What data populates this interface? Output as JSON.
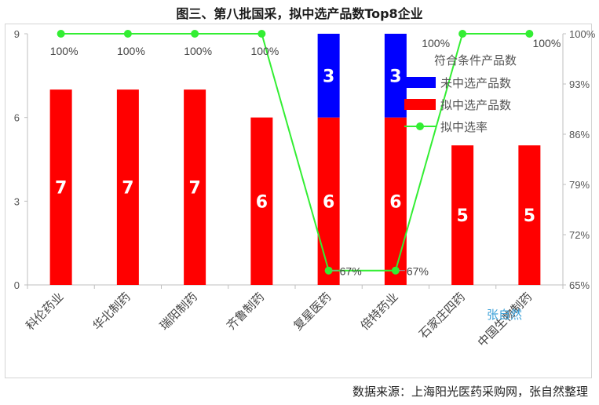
{
  "chart_data": {
    "type": "bar",
    "title": "图三、第八批国采，拟中选产品数Top8企业",
    "categories": [
      "科伦药业",
      "华北制药",
      "瑞阳制药",
      "齐鲁制药",
      "复星医药",
      "倍特药业",
      "石家庄四药",
      "中国生物制药"
    ],
    "series": [
      {
        "name": "拟中选产品数",
        "values": [
          7,
          7,
          7,
          6,
          6,
          6,
          5,
          5
        ],
        "color": "#ff0000"
      },
      {
        "name": "未中选产品数",
        "values": [
          0,
          0,
          0,
          0,
          3,
          3,
          0,
          0
        ],
        "color": "#0000ff"
      }
    ],
    "line_series": {
      "name": "拟中选率",
      "values": [
        100,
        100,
        100,
        100,
        67,
        67,
        100,
        100
      ],
      "labels": [
        "100%",
        "100%",
        "100%",
        "100%",
        "67%",
        "67%",
        "100%",
        "100%"
      ],
      "color": "#33ee33"
    },
    "legend_header": "符合条件产品数",
    "legend_position": "top-right",
    "ylim": [
      0,
      9
    ],
    "yticks": [
      "0",
      "3",
      "6",
      "9"
    ],
    "y2lim": [
      65,
      100
    ],
    "y2ticks": [
      "65%",
      "72%",
      "79%",
      "86%",
      "93%",
      "100%"
    ],
    "grid": false
  },
  "source_note": "数据来源：上海阳光医药采购网，张自然整理",
  "watermark": "张自然"
}
